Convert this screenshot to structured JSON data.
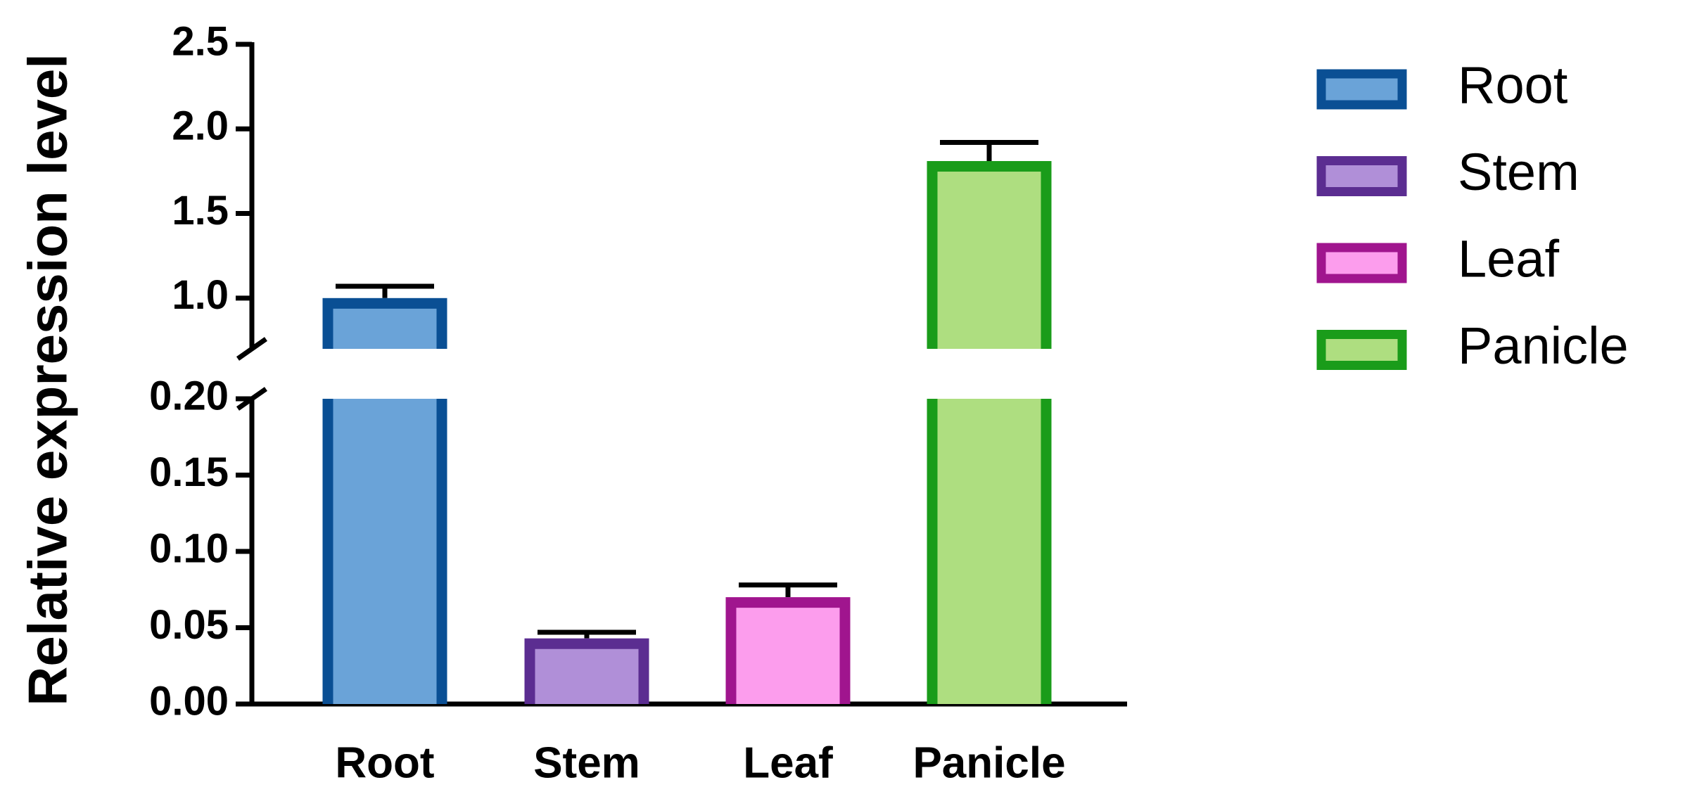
{
  "chart_data": {
    "type": "bar",
    "y_label": "Relative expression level",
    "categories": [
      "Root",
      "Stem",
      "Leaf",
      "Panicle"
    ],
    "values": [
      1.0,
      0.043,
      0.07,
      1.81
    ],
    "errors": [
      0.07,
      0.004,
      0.008,
      0.11
    ],
    "colors": [
      "#6aa3d8",
      "#b08fd8",
      "#fc9ded",
      "#aede80"
    ],
    "edge_colors": [
      "#0a4f94",
      "#5b2d91",
      "#a0158e",
      "#1a9c1a"
    ],
    "y_segments": [
      {
        "ylim": [
          0,
          0.2
        ],
        "yticks": [
          {
            "value": 0,
            "label": "0.00"
          },
          {
            "value": 0.05,
            "label": "0.05"
          },
          {
            "value": 0.1,
            "label": "0.10"
          },
          {
            "value": 0.15,
            "label": "0.15"
          },
          {
            "value": 0.2,
            "label": "0.20"
          }
        ]
      },
      {
        "ylim": [
          0.7,
          2.5
        ],
        "yticks": [
          {
            "value": 1,
            "label": "1.0"
          },
          1.5,
          {
            "value": 2,
            "label": "2.0"
          },
          2.5
        ]
      }
    ]
  }
}
